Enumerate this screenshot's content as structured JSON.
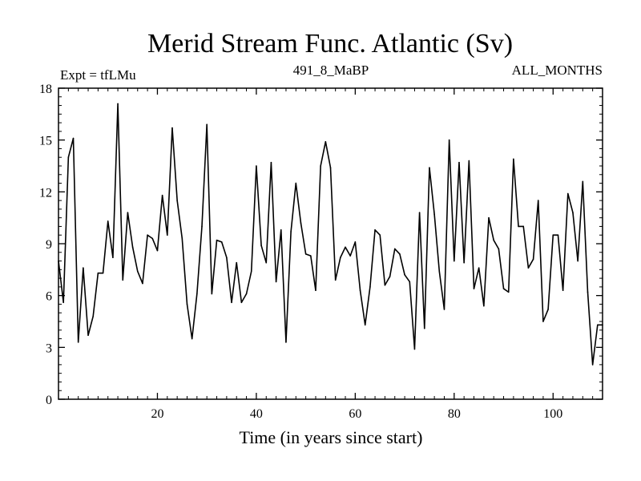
{
  "chart_data": {
    "type": "line",
    "title": "Merid Stream Func. Atlantic (Sv)",
    "subtitle_left": "Expt = tfLMu",
    "subtitle_center": "491_8_MaBP",
    "subtitle_right": "ALL_MONTHS",
    "xlabel": "Time (in years since start)",
    "ylabel": "",
    "xlim": [
      0,
      110
    ],
    "ylim": [
      0,
      18
    ],
    "xticks": [
      20,
      40,
      60,
      80,
      100
    ],
    "yticks": [
      0,
      3,
      6,
      9,
      12,
      15,
      18
    ],
    "series": [
      {
        "name": "Merid Stream Func. Atlantic",
        "x": [
          0,
          1,
          2,
          3,
          4,
          5,
          6,
          7,
          8,
          9,
          10,
          11,
          12,
          13,
          14,
          15,
          16,
          17,
          18,
          19,
          20,
          21,
          22,
          23,
          24,
          25,
          26,
          27,
          28,
          29,
          30,
          31,
          32,
          33,
          34,
          35,
          36,
          37,
          38,
          39,
          40,
          41,
          42,
          43,
          44,
          45,
          46,
          47,
          48,
          49,
          50,
          51,
          52,
          53,
          54,
          55,
          56,
          57,
          58,
          59,
          60,
          61,
          62,
          63,
          64,
          65,
          66,
          67,
          68,
          69,
          70,
          71,
          72,
          73,
          74,
          75,
          76,
          77,
          78,
          79,
          80,
          81,
          82,
          83,
          84,
          85,
          86,
          87,
          88,
          89,
          90,
          91,
          92,
          93,
          94,
          95,
          96,
          97,
          98,
          99,
          100,
          101,
          102,
          103,
          104,
          105,
          106,
          107,
          108,
          109,
          110
        ],
        "y": [
          8.0,
          5.6,
          14.0,
          15.1,
          3.3,
          7.6,
          3.7,
          4.8,
          7.3,
          7.3,
          10.3,
          8.2,
          17.1,
          6.9,
          10.8,
          8.8,
          7.4,
          6.7,
          9.5,
          9.3,
          8.6,
          11.8,
          9.5,
          15.7,
          11.5,
          9.3,
          5.5,
          3.5,
          6.1,
          10.0,
          15.9,
          6.1,
          9.2,
          9.1,
          8.2,
          5.6,
          7.9,
          5.6,
          6.1,
          7.4,
          13.5,
          8.9,
          7.9,
          13.7,
          6.8,
          9.8,
          3.3,
          9.7,
          12.5,
          10.2,
          8.4,
          8.3,
          6.3,
          13.5,
          14.9,
          13.4,
          6.9,
          8.2,
          8.8,
          8.3,
          9.1,
          6.3,
          4.3,
          6.5,
          9.8,
          9.5,
          6.6,
          7.1,
          8.7,
          8.4,
          7.2,
          6.8,
          2.9,
          10.8,
          4.1,
          13.4,
          10.7,
          7.4,
          5.2,
          15.0,
          8.0,
          13.7,
          7.9,
          13.8,
          6.4,
          7.6,
          5.4,
          10.5,
          9.2,
          8.7,
          6.4,
          6.2,
          13.9,
          10.0,
          10.0,
          7.6,
          8.1,
          11.5,
          4.5,
          5.2,
          9.5,
          9.5,
          6.3,
          11.9,
          10.8,
          8.0,
          12.6,
          6.2,
          2.0,
          4.3,
          4.3
        ]
      }
    ]
  }
}
